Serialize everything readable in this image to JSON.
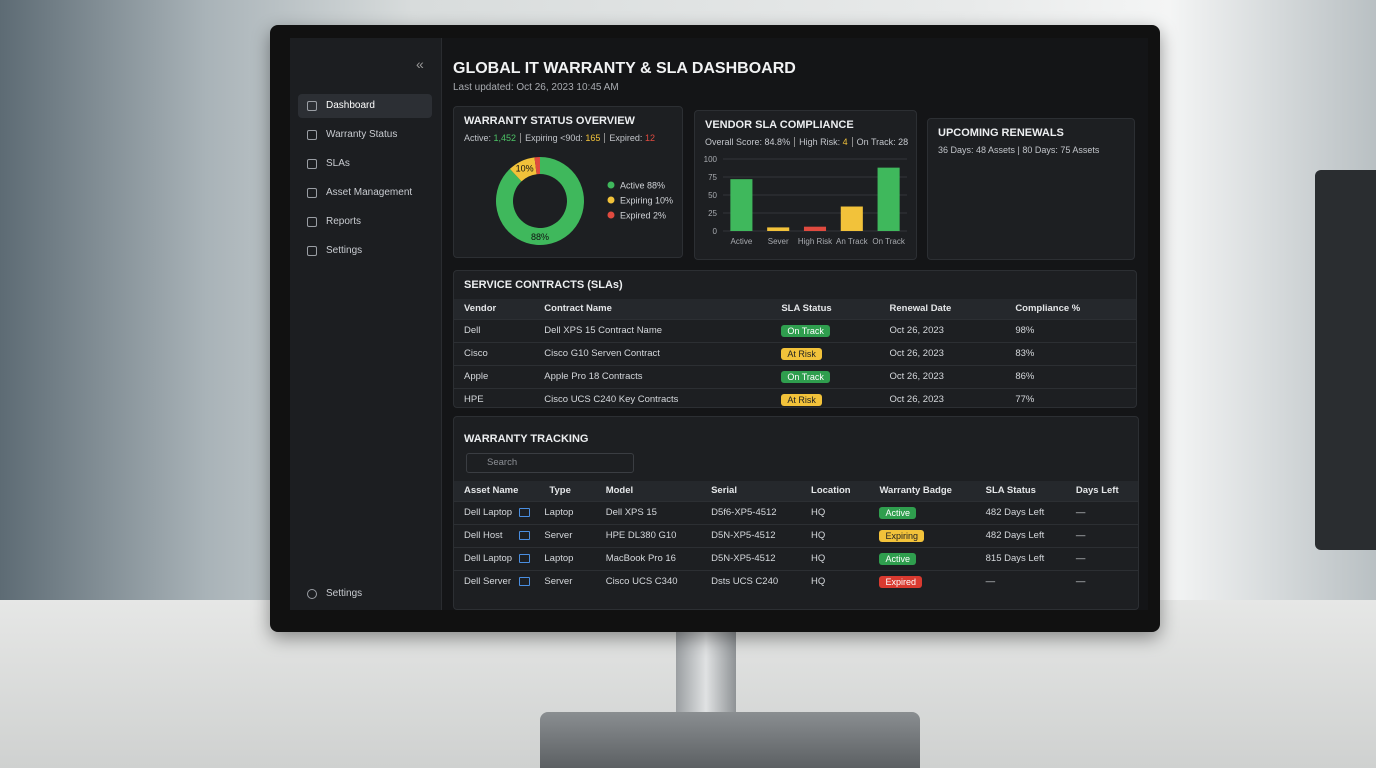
{
  "sidebar": {
    "items": [
      "Dashboard",
      "Warranty Status",
      "SLAs",
      "Asset Management",
      "Reports",
      "Settings"
    ],
    "footer": "Settings"
  },
  "header": {
    "title": "GLOBAL IT WARRANTY & SLA DASHBOARD",
    "subtitle": "Last updated: Oct 26, 2023 10:45 AM"
  },
  "warranty_overview": {
    "title": "WARRANTY STATUS OVERVIEW",
    "stats": [
      {
        "label": "Active:",
        "value": "1,452",
        "color": "#4cc265"
      },
      {
        "label": "Expiring <90d:",
        "value": "165",
        "color": "#f2c23a"
      },
      {
        "label": "Expired:",
        "value": "12",
        "color": "#e04a3f"
      }
    ]
  },
  "vendor_sla": {
    "title": "VENDOR SLA COMPLIANCE",
    "stats": [
      {
        "label": "Overall Score:",
        "value": "84.8%",
        "color": "#c9ccd1"
      },
      {
        "label": "High Risk:",
        "value": "4",
        "color": "#f2c23a"
      },
      {
        "label": "On Track:",
        "value": "28",
        "color": "#c9ccd1"
      }
    ]
  },
  "chart_data": [
    {
      "type": "pie",
      "categories": [
        "Active",
        "Expiring",
        "Expired"
      ],
      "values": [
        88,
        10,
        2
      ],
      "value_labels": [
        "88%",
        "10%",
        "2%"
      ],
      "colors": [
        "#3fb85c",
        "#f2c23a",
        "#e04a3f"
      ]
    },
    {
      "type": "bar",
      "categories": [
        "Active",
        "Sever",
        "High Risk",
        "An Track",
        "On Track"
      ],
      "values": [
        72,
        5,
        6,
        34,
        88
      ],
      "colors": [
        "#3fb85c",
        "#f2c23a",
        "#e04a3f",
        "#f2c23a",
        "#3fb85c"
      ],
      "ylim": [
        0,
        100
      ],
      "yticks": [
        0,
        25,
        50,
        75,
        100
      ],
      "grid": true
    }
  ],
  "renewals": {
    "title": "UPCOMING RENEWALS",
    "text": "36 Days: 48 Assets | 80 Days: 75 Assets"
  },
  "contracts": {
    "title": "SERVICE CONTRACTS (SLAs)",
    "columns": [
      "Vendor",
      "Contract Name",
      "SLA Status",
      "Renewal Date",
      "Compliance %"
    ],
    "rows": [
      [
        "Dell",
        "Dell XPS 15 Contract Name",
        "On Track",
        "Oct 26, 2023",
        "98%"
      ],
      [
        "Cisco",
        "Cisco G10 Serven Contract",
        "At Risk",
        "Oct 26, 2023",
        "83%"
      ],
      [
        "Apple",
        "Apple Pro 18 Contracts",
        "On Track",
        "Oct 26, 2023",
        "86%"
      ],
      [
        "HPE",
        "Cisco UCS C240 Key Contracts",
        "At Risk",
        "Oct 26, 2023",
        "77%"
      ]
    ],
    "status_colors": [
      "#2f9e4e",
      "#f2c23a",
      "#2f9e4e",
      "#f2c23a"
    ]
  },
  "tracking": {
    "title": "WARRANTY TRACKING",
    "search": "Search",
    "columns": [
      "Asset Name",
      "Type",
      "Model",
      "Serial",
      "Location",
      "Warranty Badge",
      "SLA Status",
      "Days Left"
    ],
    "rows": [
      [
        "Dell Laptop",
        "Laptop",
        "Dell XPS 15",
        "D5f6-XP5-4512",
        "HQ",
        "Active",
        "482 Days Left",
        "—"
      ],
      [
        "Dell Host",
        "Server",
        "HPE DL380 G10",
        "D5N-XP5-4512",
        "HQ",
        "Expiring",
        "482 Days Left",
        "—"
      ],
      [
        "Dell Laptop",
        "Laptop",
        "MacBook Pro 16",
        "D5N-XP5-4512",
        "HQ",
        "Active",
        "815 Days Left",
        "—"
      ],
      [
        "Dell Server",
        "Server",
        "Cisco UCS C340",
        "Dsts UCS C240",
        "HQ",
        "Expired",
        "—",
        "—"
      ]
    ],
    "badge_colors": [
      "#2f9e4e",
      "#f2c23a",
      "#2f9e4e",
      "#d93a30"
    ]
  }
}
